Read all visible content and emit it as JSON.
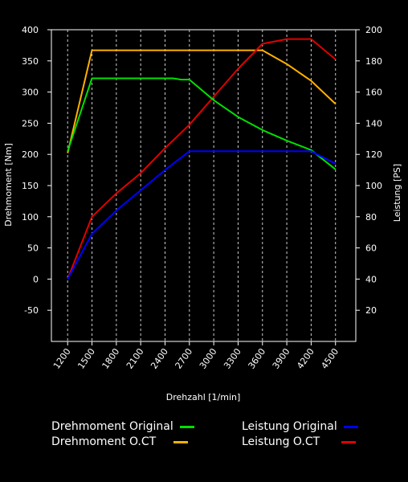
{
  "chart_data": {
    "type": "line",
    "xlabel": "Drehzahl [1/min]",
    "ylabel_left": "Drehmoment [Nm]",
    "ylabel_right": "Leistung [PS]",
    "x_ticks": [
      1200,
      1500,
      1800,
      2100,
      2400,
      2700,
      3000,
      3300,
      3600,
      3900,
      4200,
      4500
    ],
    "xlim": [
      1000,
      4750
    ],
    "y_left_ticks": [
      -50,
      0,
      50,
      100,
      150,
      200,
      250,
      300,
      350,
      400
    ],
    "ylim_left": [
      -100,
      400
    ],
    "y_right_ticks": [
      20,
      40,
      60,
      80,
      100,
      120,
      140,
      160,
      180,
      200
    ],
    "ylim_right": [
      0,
      200
    ],
    "grid": "vertical dashed",
    "series": [
      {
        "name": "Drehmoment Original",
        "axis": "left",
        "color": "#00e000",
        "x": [
          1200,
          1500,
          1800,
          2100,
          2400,
          2500,
          2600,
          2700,
          3000,
          3300,
          3600,
          3900,
          4200,
          4500
        ],
        "values": [
          205,
          322,
          322,
          322,
          322,
          322,
          320,
          320,
          287,
          260,
          239,
          222,
          207,
          176
        ]
      },
      {
        "name": "Drehmoment O.CT",
        "axis": "left",
        "color": "#ffb000",
        "x": [
          1200,
          1500,
          1800,
          2100,
          2400,
          2700,
          3000,
          3300,
          3600,
          3900,
          4200,
          4500
        ],
        "values": [
          202,
          367,
          367,
          367,
          367,
          367,
          367,
          367,
          367,
          345,
          318,
          281
        ]
      },
      {
        "name": "Leistung Original",
        "axis": "right",
        "color": "#0000ff",
        "x": [
          1200,
          1500,
          1800,
          2100,
          2400,
          2700,
          3000,
          3300,
          3600,
          3900,
          4200,
          4500
        ],
        "values": [
          40,
          69,
          84,
          97,
          110,
          122,
          122,
          122,
          122,
          122,
          122,
          114
        ]
      },
      {
        "name": "Leistung O.CT",
        "axis": "right",
        "color": "#e00000",
        "x": [
          1200,
          1500,
          1800,
          2100,
          2400,
          2700,
          3000,
          3300,
          3600,
          3800,
          3900,
          4050,
          4200,
          4500
        ],
        "values": [
          40,
          80,
          95,
          108,
          124,
          139,
          157,
          175,
          191,
          193,
          194,
          194,
          194,
          181
        ]
      }
    ],
    "legend_position": "bottom"
  }
}
